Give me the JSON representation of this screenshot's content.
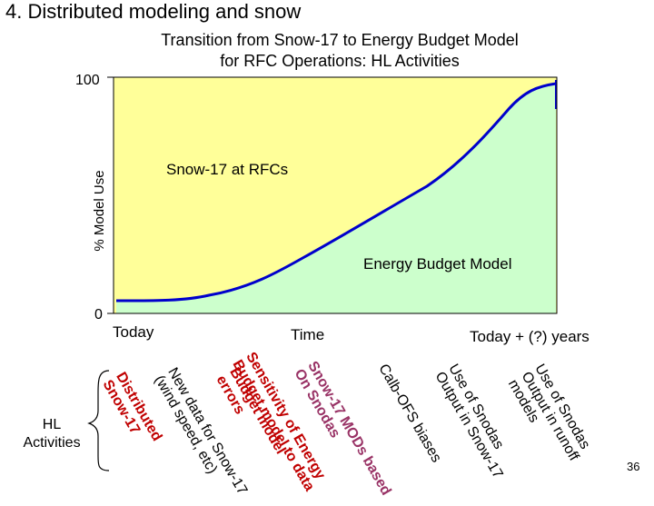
{
  "slide": {
    "title": "4. Distributed modeling and snow",
    "page_number": "36"
  },
  "chart": {
    "title_line1": "Transition from Snow-17 to Energy Budget Model",
    "title_line2": "for RFC Operations: HL Activities",
    "y_axis_label": "% Model Use",
    "y_tick_top": "100",
    "y_tick_bottom": "0",
    "x_label_left": "Today",
    "x_label_center": "Time",
    "x_label_right": "Today + (?) years",
    "region_upper_label": "Snow-17 at RFCs",
    "region_lower_label": "Energy Budget Model",
    "colors": {
      "upper_region": "#ffff99",
      "lower_region": "#ccffcc",
      "curve": "#0000cc"
    }
  },
  "activities": {
    "label_line1": "HL",
    "label_line2": "Activities",
    "items": [
      {
        "line1": "Distributed",
        "line2": "Snow-17",
        "color": "#c00000"
      },
      {
        "line1": "New data for Snow-17",
        "line2": "(wind speed, etc)",
        "color": "#000000"
      },
      {
        "line1": "Budget model",
        "line2": "errors",
        "color": "#c00000"
      },
      {
        "line1": "Sensitivity of Energy",
        "line2": "Budget model to data",
        "color": "#c00000"
      },
      {
        "line1": "Snow-17 MODs based",
        "line2": "On Snodas",
        "color": "#993366"
      },
      {
        "line1": "Calb-OFS biases",
        "line2": "",
        "color": "#000000"
      },
      {
        "line1": "Use of Snodas",
        "line2": "Output in Snow-17",
        "color": "#000000"
      },
      {
        "line1": "Use of Snodas",
        "line2": "Output in runoff",
        "line3": "models",
        "color": "#000000"
      }
    ]
  }
}
